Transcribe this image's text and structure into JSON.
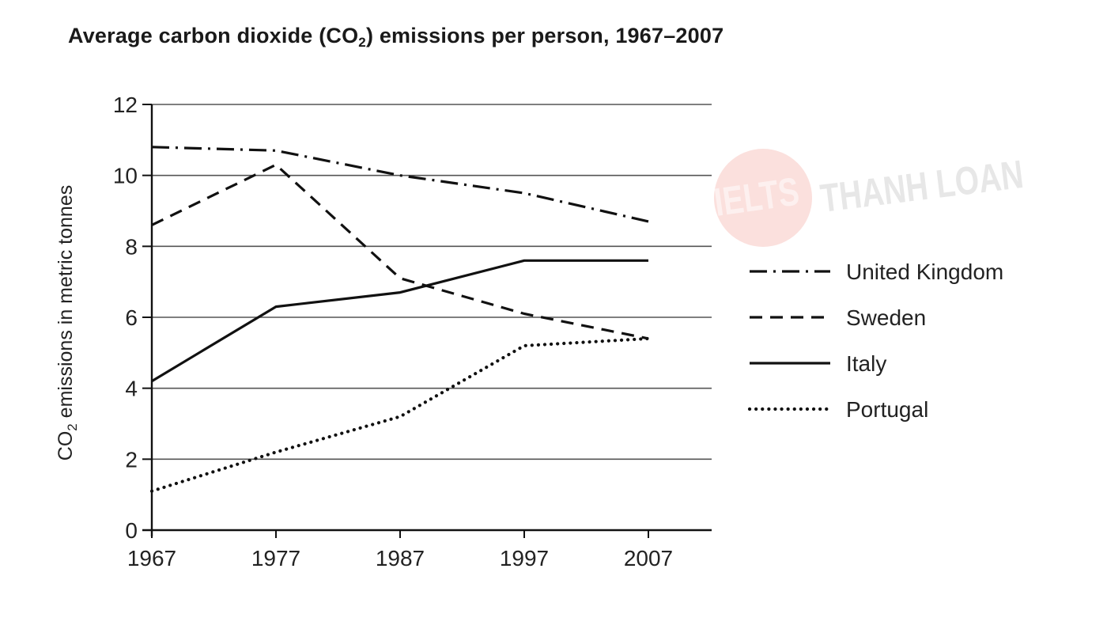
{
  "chart_data": {
    "type": "line",
    "title_parts": {
      "before": "Average carbon dioxide (CO",
      "sub": "2",
      "after": ") emissions per person, 1967–2007"
    },
    "title": "Average carbon dioxide (CO2) emissions per person, 1967–2007",
    "xlabel": "",
    "ylabel_parts": {
      "before": "CO",
      "sub": "2",
      "after": " emissions in metric tonnes"
    },
    "ylabel": "CO2 emissions in metric tonnes",
    "x": [
      1967,
      1977,
      1987,
      1997,
      2007
    ],
    "x_tick_labels": [
      "1967",
      "1977",
      "1987",
      "1997",
      "2007"
    ],
    "xlim": [
      1967,
      2012
    ],
    "y_ticks": [
      0,
      2,
      4,
      6,
      8,
      10,
      12
    ],
    "y_tick_labels": [
      "0",
      "2",
      "4",
      "6",
      "8",
      "10",
      "12"
    ],
    "ylim": [
      0,
      12
    ],
    "grid": "horizontal",
    "legend_position": "right",
    "series": [
      {
        "name": "United Kingdom",
        "style": "dash-dot",
        "values": [
          10.8,
          10.7,
          10.0,
          9.5,
          8.7
        ]
      },
      {
        "name": "Sweden",
        "style": "dashed",
        "values": [
          8.6,
          10.3,
          7.1,
          6.1,
          5.4
        ]
      },
      {
        "name": "Italy",
        "style": "solid",
        "values": [
          4.2,
          6.3,
          6.7,
          7.6,
          7.6
        ]
      },
      {
        "name": "Portugal",
        "style": "dotted",
        "values": [
          1.1,
          2.2,
          3.2,
          5.2,
          5.4
        ]
      }
    ]
  },
  "watermark": {
    "circle_text": "IELTS",
    "text": "THANH LOAN",
    "circle_color": "#fbe0dd"
  },
  "colors": {
    "line": "#111111",
    "grid": "#555555",
    "background": "#ffffff"
  }
}
